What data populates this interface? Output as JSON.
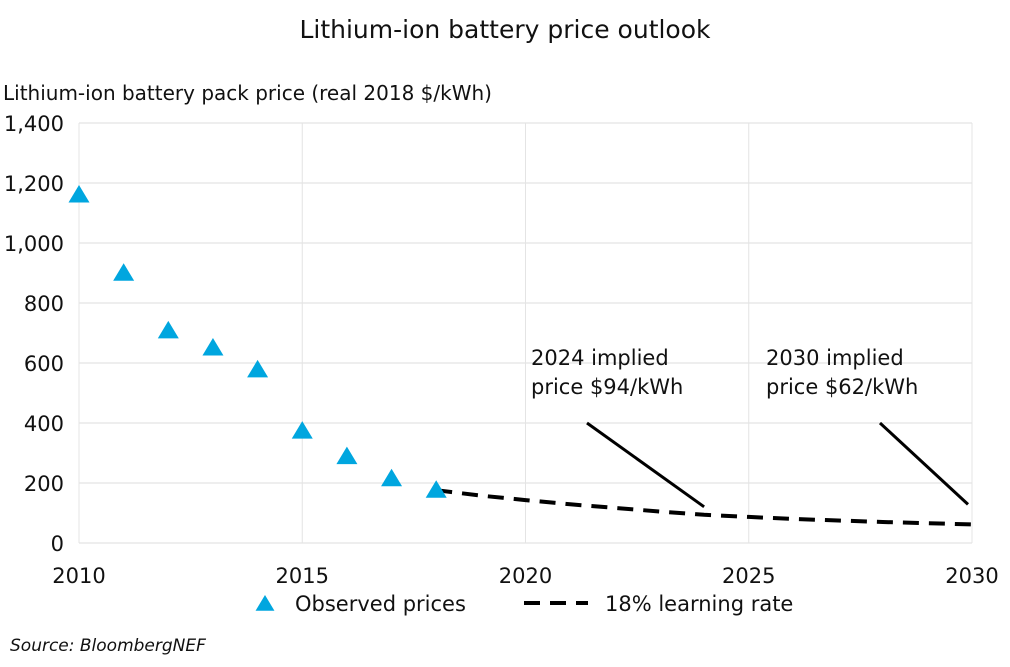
{
  "chart_data": {
    "type": "scatter",
    "title": "Lithium-ion battery price outlook",
    "ylabel": "Lithium-ion battery pack price (real 2018 $/kWh)",
    "xlabel": "",
    "xlim": [
      2010,
      2030
    ],
    "ylim": [
      0,
      1400
    ],
    "xticks": [
      "2010",
      "2015",
      "2020",
      "2025",
      "2030"
    ],
    "yticks": [
      "0",
      "200",
      "400",
      "600",
      "800",
      "1,000",
      "1,200",
      "1,400"
    ],
    "grid": true,
    "legend_position": "bottom",
    "colors": {
      "observed": "#00a6df",
      "forecast": "#000000"
    },
    "series": [
      {
        "name": "Observed prices",
        "marker": "triangle",
        "x": [
          2010,
          2011,
          2012,
          2013,
          2014,
          2015,
          2016,
          2017,
          2018
        ],
        "y": [
          1160,
          899,
          707,
          650,
          577,
          373,
          288,
          214,
          176
        ]
      },
      {
        "name": "18% learning rate",
        "style": "dashed",
        "x": [
          2018,
          2019,
          2020,
          2021,
          2022,
          2023,
          2024,
          2025,
          2026,
          2027,
          2028,
          2029,
          2030
        ],
        "y": [
          176,
          158,
          143,
          129,
          117,
          105,
          94,
          87,
          80,
          75,
          70,
          66,
          62
        ]
      }
    ],
    "annotations": [
      {
        "lines": [
          "2024 implied",
          "price $94/kWh"
        ],
        "x": 2024,
        "y": 94
      },
      {
        "lines": [
          "2030 implied",
          "price $62/kWh"
        ],
        "x": 2030,
        "y": 62
      }
    ],
    "source": "Source: BloombergNEF"
  }
}
